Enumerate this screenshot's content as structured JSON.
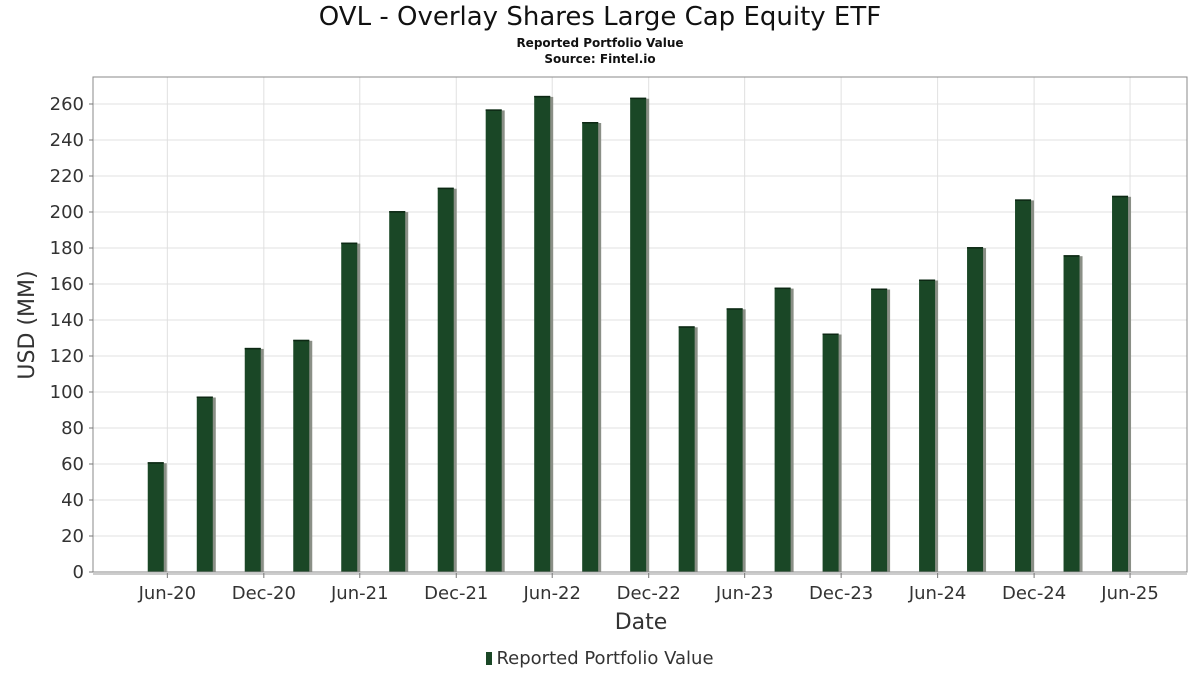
{
  "title": "OVL - Overlay Shares Large Cap Equity ETF",
  "subtitle": "Reported Portfolio Value",
  "source": "Source: Fintel.io",
  "colors": {
    "bar": "#1a4726",
    "shadow": "#8a8f86",
    "grid": "#e0e0e0",
    "frame": "#888888"
  },
  "chart_data": {
    "type": "bar",
    "xlabel": "Date",
    "ylabel": "USD (MM)",
    "ylim": [
      0,
      275
    ],
    "yticks": [
      0,
      20,
      40,
      60,
      80,
      100,
      120,
      140,
      160,
      180,
      200,
      220,
      240,
      260
    ],
    "grid": true,
    "legend_position": "bottom",
    "xtick_labels": [
      "Jun-20",
      "Dec-20",
      "Jun-21",
      "Dec-21",
      "Jun-22",
      "Dec-22",
      "Jun-23",
      "Dec-23",
      "Jun-24",
      "Dec-24",
      "Jun-25"
    ],
    "xtick_dates": [
      "2020-06-01",
      "2020-12-01",
      "2021-06-01",
      "2021-12-01",
      "2022-06-01",
      "2022-12-01",
      "2023-06-01",
      "2023-12-01",
      "2024-06-01",
      "2024-12-01",
      "2025-06-01"
    ],
    "x_range": [
      "2020-01-12",
      "2025-09-17"
    ],
    "series": [
      {
        "name": "Reported Portfolio Value",
        "points": [
          {
            "date": "2020-05-10",
            "value": 61
          },
          {
            "date": "2020-08-11",
            "value": 97.5
          },
          {
            "date": "2020-11-10",
            "value": 124.5
          },
          {
            "date": "2021-02-10",
            "value": 129
          },
          {
            "date": "2021-05-12",
            "value": 183
          },
          {
            "date": "2021-08-11",
            "value": 200.5
          },
          {
            "date": "2021-11-11",
            "value": 213.5
          },
          {
            "date": "2022-02-10",
            "value": 257
          },
          {
            "date": "2022-05-13",
            "value": 264.5
          },
          {
            "date": "2022-08-12",
            "value": 250
          },
          {
            "date": "2022-11-11",
            "value": 263.5
          },
          {
            "date": "2023-02-11",
            "value": 136.5
          },
          {
            "date": "2023-05-13",
            "value": 146.5
          },
          {
            "date": "2023-08-12",
            "value": 158
          },
          {
            "date": "2023-11-11",
            "value": 132.5
          },
          {
            "date": "2024-02-11",
            "value": 157.5
          },
          {
            "date": "2024-05-12",
            "value": 162.5
          },
          {
            "date": "2024-08-11",
            "value": 180.5
          },
          {
            "date": "2024-11-10",
            "value": 207
          },
          {
            "date": "2025-02-10",
            "value": 176
          },
          {
            "date": "2025-05-13",
            "value": 209
          }
        ]
      }
    ]
  },
  "legend": {
    "label": "Reported Portfolio Value"
  }
}
